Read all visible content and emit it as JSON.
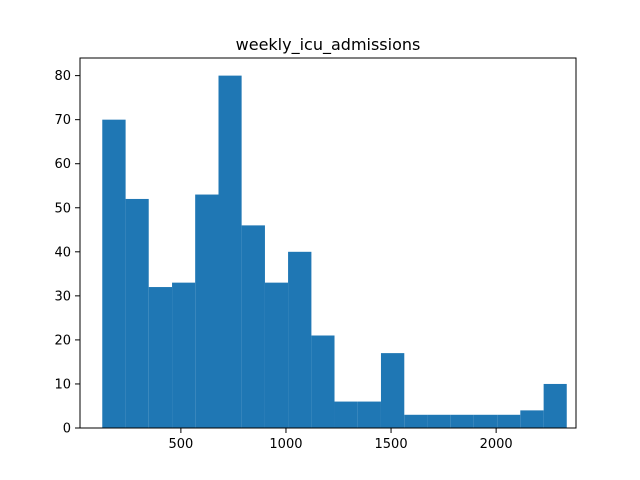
{
  "chart_data": {
    "type": "histogram",
    "title": "weekly_icu_admissions",
    "xlabel": "",
    "ylabel": "",
    "xlim": [
      20,
      2380
    ],
    "ylim": [
      0,
      84
    ],
    "xticks": [
      500,
      1000,
      1500,
      2000
    ],
    "yticks": [
      0,
      10,
      20,
      30,
      40,
      50,
      60,
      70,
      80
    ],
    "bin_edges": [
      126,
      237,
      347,
      458,
      568,
      679,
      789,
      900,
      1010,
      1121,
      1231,
      1342,
      1452,
      1563,
      1673,
      1784,
      1894,
      2005,
      2115,
      2226,
      2336
    ],
    "counts": [
      70,
      52,
      32,
      33,
      53,
      80,
      46,
      33,
      40,
      21,
      6,
      6,
      17,
      3,
      3,
      3,
      3,
      3,
      4,
      10
    ],
    "color": "#1f77b4",
    "grid": false
  }
}
